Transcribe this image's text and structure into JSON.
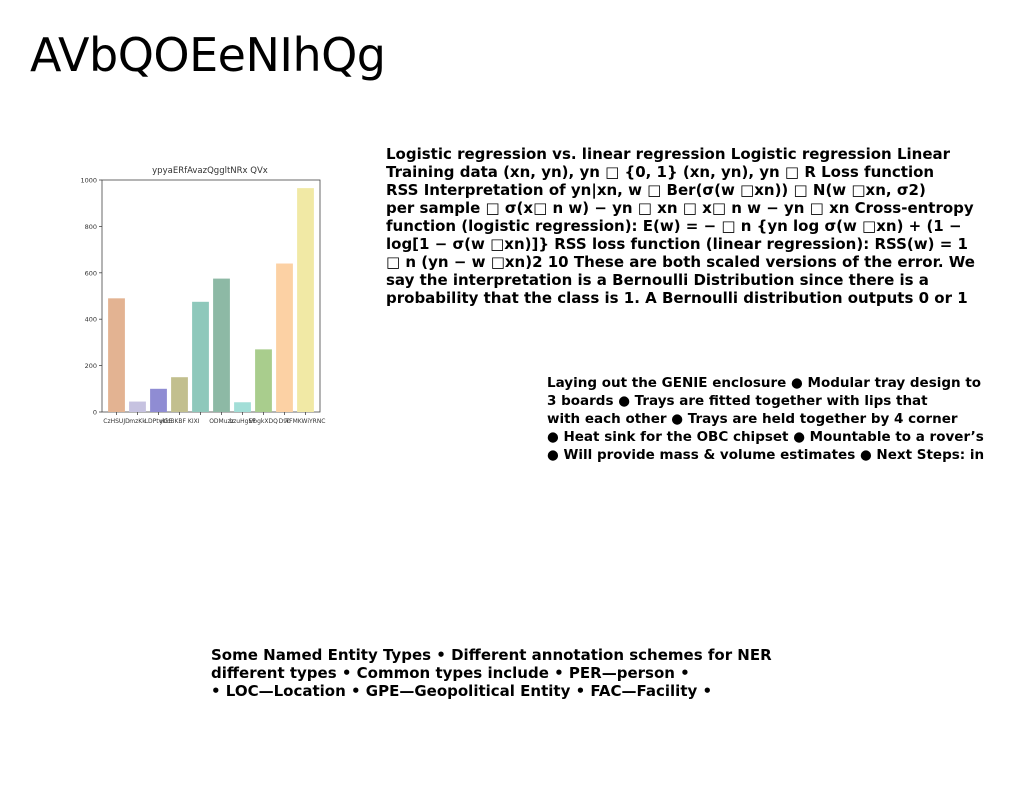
{
  "slide": {
    "title": "AVbQOEeNIhQg"
  },
  "chart_data": {
    "type": "bar",
    "title": "ypyaERfAvazQggltNRx QVx",
    "categories": [
      "CzHSUJI",
      "Dmzkk",
      "KLDPtviGE",
      "vZyUtcBKF",
      "BBFK KIXI",
      "ONDMuzz",
      "bzuHgEFO",
      "zUVbgkX",
      "DQFTSDV",
      "TFIMKWiYRNC"
    ],
    "tick_labels_printed": [
      "CzHSUJD",
      "mzKk",
      "LDPtviGE",
      "ytlcBKBF KIXI",
      "",
      "ODMuzz",
      "bzuHgEF",
      "VbgkXDQ",
      "D9c",
      "TFMKWiYRNC"
    ],
    "values": [
      490,
      45,
      100,
      150,
      475,
      575,
      42,
      270,
      640,
      965
    ],
    "colors": [
      "#e3b392",
      "#c6c2e0",
      "#8f8cd3",
      "#c2bf8e",
      "#8ec8bb",
      "#8db9a5",
      "#a2ded7",
      "#a9cd8d",
      "#fcd1a4",
      "#f1e9a5"
    ],
    "yticks": [
      "0",
      "200",
      "400",
      "600",
      "800",
      "1000"
    ],
    "ylim": [
      0,
      1000
    ],
    "xlabel": "",
    "ylabel": ""
  },
  "blocks": {
    "logreg": [
      "Logistic regression vs. linear regression Logistic regression Linear",
      "Training data (xn, yn), yn □ {0, 1} (xn, yn), yn □ R Loss function",
      "RSS Interpretation of yn|xn, w □ Ber(σ(w □xn)) □ N(w □xn, σ2)",
      "per sample □ σ(x□ n w) − yn □ xn □ x□ n w − yn □ xn Cross-entropy",
      "function (logistic regression): E(w) = − □ n {yn log σ(w □xn) + (1 −",
      "log[1 − σ(w □xn)]} RSS loss function (linear regression): RSS(w) = 1",
      "□ n (yn − w □xn)2 10 These are both scaled versions of the error. We",
      "say the interpretation is a Bernoulli Distribution since there is a",
      "probability that the class is 1. A Bernoulli distribution outputs 0 or 1"
    ],
    "genie": [
      "Laying out the GENIE enclosure ● Modular tray design to",
      "3 boards ● Trays are fitted together with lips that",
      "with each other ● Trays are held together by 4 corner",
      "● Heat sink for the OBC chipset ● Mountable to a rover’s",
      "● Will provide mass & volume estimates ● Next Steps: in"
    ],
    "ner": [
      "Some Named Entity Types • Different annotation schemes for NER",
      "different types • Common types include • PER—person •",
      "• LOC—Location • GPE—Geopolitical Entity • FAC—Facility •"
    ]
  }
}
